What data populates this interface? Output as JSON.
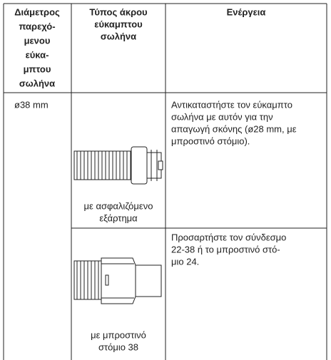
{
  "table": {
    "header": [
      [
        "Διάμετρος",
        "παρεχό-",
        "μενου",
        "εύκα-",
        "μπτου",
        "σωλήνα"
      ],
      [
        "Τύπος άκρου",
        "εύκαμπτου",
        "σωλήνα"
      ],
      [
        "Ενέργεια"
      ]
    ],
    "rows": [
      {
        "diameter": "ø38 mm",
        "type": [
          "με ασφαλιζόμενο",
          "εξάρτημα"
        ],
        "action": [
          "Αντικαταστήστε τον εύκαμπτο",
          "σωλήνα με αυτόν για την",
          "απαγωγή σκόνης (ø28 mm, με",
          "μπροστινό στόμιο)."
        ]
      },
      {
        "type": [
          "με μπροστινό",
          "στόμιο 38"
        ],
        "action": [
          "Προσαρτήστε τον σύνδεσμο",
          "22-38 ή το μπροστινό στό-",
          "μιο 24."
        ]
      }
    ]
  }
}
